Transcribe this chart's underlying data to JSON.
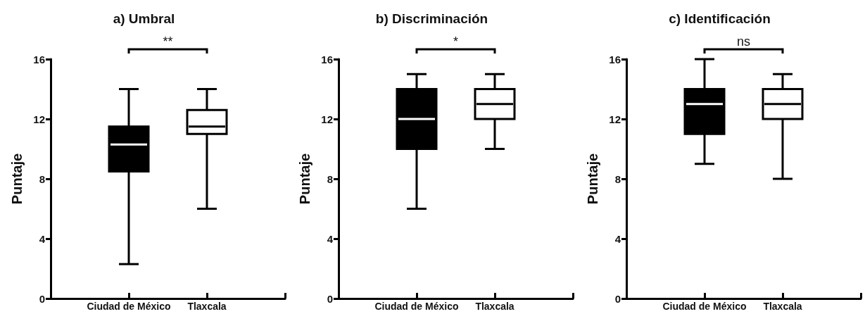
{
  "chart_data": [
    {
      "type": "box",
      "title": "a) Umbral",
      "ylabel": "Puntaje",
      "categories": [
        "Ciudad de México",
        "Tlaxcala"
      ],
      "colors": [
        "#000000",
        "#ffffff"
      ],
      "ylim": [
        0,
        16
      ],
      "yticks": [
        0,
        4,
        8,
        12,
        16
      ],
      "grid": false,
      "annotations": [
        "**"
      ],
      "boxes": [
        {
          "low": 2.3,
          "q1": 8.5,
          "median": 10.3,
          "q3": 11.5,
          "high": 14
        },
        {
          "low": 6,
          "q1": 11,
          "median": 11.5,
          "q3": 12.6,
          "high": 14
        }
      ]
    },
    {
      "type": "box",
      "title": "b) Discriminación",
      "ylabel": "Puntaje",
      "categories": [
        "Ciudad de México",
        "Tlaxcala"
      ],
      "colors": [
        "#000000",
        "#ffffff"
      ],
      "ylim": [
        0,
        16
      ],
      "yticks": [
        0,
        4,
        8,
        12,
        16
      ],
      "grid": false,
      "annotations": [
        "*"
      ],
      "boxes": [
        {
          "low": 6,
          "q1": 10,
          "median": 12,
          "q3": 14,
          "high": 15
        },
        {
          "low": 10,
          "q1": 12,
          "median": 13,
          "q3": 14,
          "high": 15
        }
      ]
    },
    {
      "type": "box",
      "title": "c) Identificación",
      "ylabel": "Puntaje",
      "categories": [
        "Ciudad de México",
        "Tlaxcala"
      ],
      "colors": [
        "#000000",
        "#ffffff"
      ],
      "ylim": [
        0,
        16
      ],
      "yticks": [
        0,
        4,
        8,
        12,
        16
      ],
      "grid": false,
      "annotations": [
        "ns"
      ],
      "boxes": [
        {
          "low": 9,
          "q1": 11,
          "median": 13,
          "q3": 14,
          "high": 16
        },
        {
          "low": 8,
          "q1": 12,
          "median": 13,
          "q3": 14,
          "high": 15
        }
      ]
    }
  ]
}
